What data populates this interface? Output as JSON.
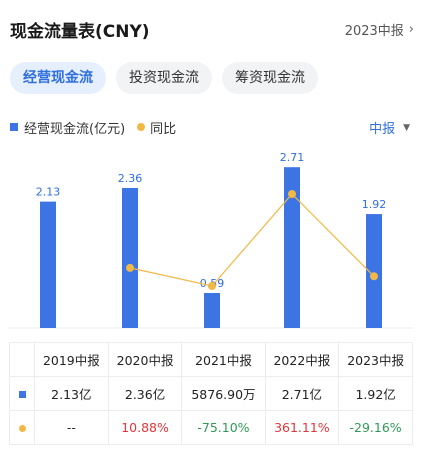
{
  "header": {
    "title": "现金流量表(CNY)",
    "period_link": "2023中报",
    "chevron": "chevron-right-icon"
  },
  "tabs": [
    {
      "label": "经营现金流",
      "active": true
    },
    {
      "label": "投资现金流",
      "active": false
    },
    {
      "label": "筹资现金流",
      "active": false
    }
  ],
  "legend": {
    "bar_label": "经营现金流(亿元)",
    "line_label": "同比"
  },
  "period_select": {
    "label": "中报"
  },
  "colors": {
    "bar": "#3d74e4",
    "line": "#f1b846",
    "accent": "#2f6fe0",
    "positive": "#e2363b",
    "negative": "#2f9a56"
  },
  "chart_data": {
    "type": "bar",
    "categories": [
      "2019中报",
      "2020中报",
      "2021中报",
      "2022中报",
      "2023中报"
    ],
    "series": [
      {
        "name": "经营现金流(亿元)",
        "type": "bar",
        "values": [
          2.13,
          2.36,
          0.59,
          2.71,
          1.92
        ],
        "labels": [
          "2.13",
          "2.36",
          "0.59",
          "2.71",
          "1.92"
        ]
      },
      {
        "name": "同比",
        "type": "line",
        "values": [
          null,
          10.88,
          -75.1,
          361.11,
          -29.16
        ]
      }
    ],
    "ylim": [
      0,
      3.0
    ],
    "grid": false,
    "legend": "top-left"
  },
  "table": {
    "headers": [
      "2019中报",
      "2020中报",
      "2021中报",
      "2022中报",
      "2023中报"
    ],
    "cash_row": [
      "2.13亿",
      "2.36亿",
      "5876.90万",
      "2.71亿",
      "1.92亿"
    ],
    "yoy_row": [
      "--",
      "10.88%",
      "-75.10%",
      "361.11%",
      "-29.16%"
    ],
    "yoy_sign": [
      "none",
      "pos",
      "neg",
      "pos",
      "neg"
    ]
  }
}
